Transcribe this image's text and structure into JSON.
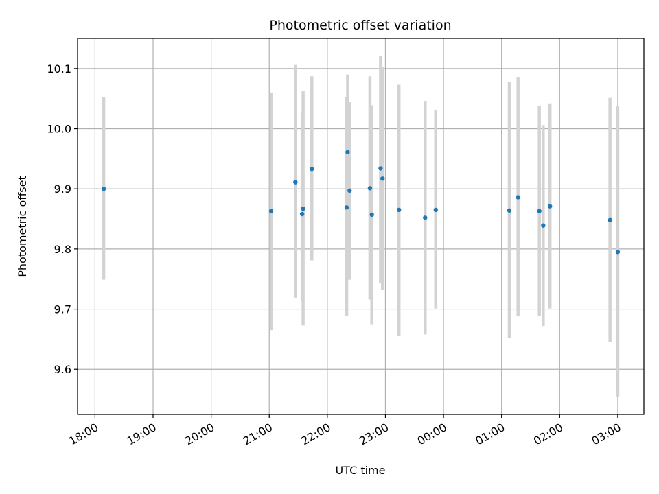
{
  "chart_data": {
    "type": "scatter",
    "title": "Photometric offset variation",
    "xlabel": "UTC time",
    "ylabel": "Photometric offset",
    "x_ticks": [
      "18:00",
      "19:00",
      "20:00",
      "21:00",
      "22:00",
      "23:00",
      "00:00",
      "01:00",
      "02:00",
      "03:00"
    ],
    "x_tick_hours": [
      0,
      1,
      2,
      3,
      4,
      5,
      6,
      7,
      8,
      9
    ],
    "y_ticks": [
      "9.6",
      "9.7",
      "9.8",
      "9.9",
      "10.0",
      "10.1"
    ],
    "y_tick_values": [
      9.6,
      9.7,
      9.8,
      9.9,
      10.0,
      10.1
    ],
    "xlim_hours": [
      -0.3,
      9.45
    ],
    "ylim": [
      9.525,
      10.15
    ],
    "grid": true,
    "marker_color": "#1f77b4",
    "errorbar_color": "#d3d3d3",
    "points": [
      {
        "t": "18:09",
        "y": 9.9,
        "lo": 9.749,
        "hi": 10.052
      },
      {
        "t": "21:02",
        "y": 9.863,
        "lo": 9.665,
        "hi": 10.06
      },
      {
        "t": "21:27",
        "y": 9.911,
        "lo": 9.719,
        "hi": 10.106
      },
      {
        "t": "21:34",
        "y": 9.858,
        "lo": 9.713,
        "hi": 10.027
      },
      {
        "t": "21:35",
        "y": 9.867,
        "lo": 9.673,
        "hi": 10.062
      },
      {
        "t": "21:44",
        "y": 9.933,
        "lo": 9.781,
        "hi": 10.087
      },
      {
        "t": "22:20",
        "y": 9.869,
        "lo": 9.689,
        "hi": 10.052
      },
      {
        "t": "22:21",
        "y": 9.961,
        "lo": 9.749,
        "hi": 10.09
      },
      {
        "t": "22:23",
        "y": 9.897,
        "lo": 9.749,
        "hi": 10.045
      },
      {
        "t": "22:44",
        "y": 9.901,
        "lo": 9.716,
        "hi": 10.087
      },
      {
        "t": "22:46",
        "y": 9.857,
        "lo": 9.675,
        "hi": 10.039
      },
      {
        "t": "22:55",
        "y": 9.934,
        "lo": 9.744,
        "hi": 10.121
      },
      {
        "t": "22:57",
        "y": 9.917,
        "lo": 9.732,
        "hi": 10.103
      },
      {
        "t": "23:14",
        "y": 9.865,
        "lo": 9.656,
        "hi": 10.073
      },
      {
        "t": "23:41",
        "y": 9.852,
        "lo": 9.658,
        "hi": 10.046
      },
      {
        "t": "23:52",
        "y": 9.865,
        "lo": 9.701,
        "hi": 10.031
      },
      {
        "t": "01:08",
        "y": 9.864,
        "lo": 9.652,
        "hi": 10.077
      },
      {
        "t": "01:17",
        "y": 9.886,
        "lo": 9.688,
        "hi": 10.086
      },
      {
        "t": "01:39",
        "y": 9.863,
        "lo": 9.689,
        "hi": 10.038
      },
      {
        "t": "01:43",
        "y": 9.839,
        "lo": 9.672,
        "hi": 10.006
      },
      {
        "t": "01:50",
        "y": 9.871,
        "lo": 9.701,
        "hi": 10.042
      },
      {
        "t": "02:52",
        "y": 9.848,
        "lo": 9.645,
        "hi": 10.051
      },
      {
        "t": "03:00",
        "y": 9.795,
        "lo": 9.554,
        "hi": 10.037
      }
    ]
  }
}
